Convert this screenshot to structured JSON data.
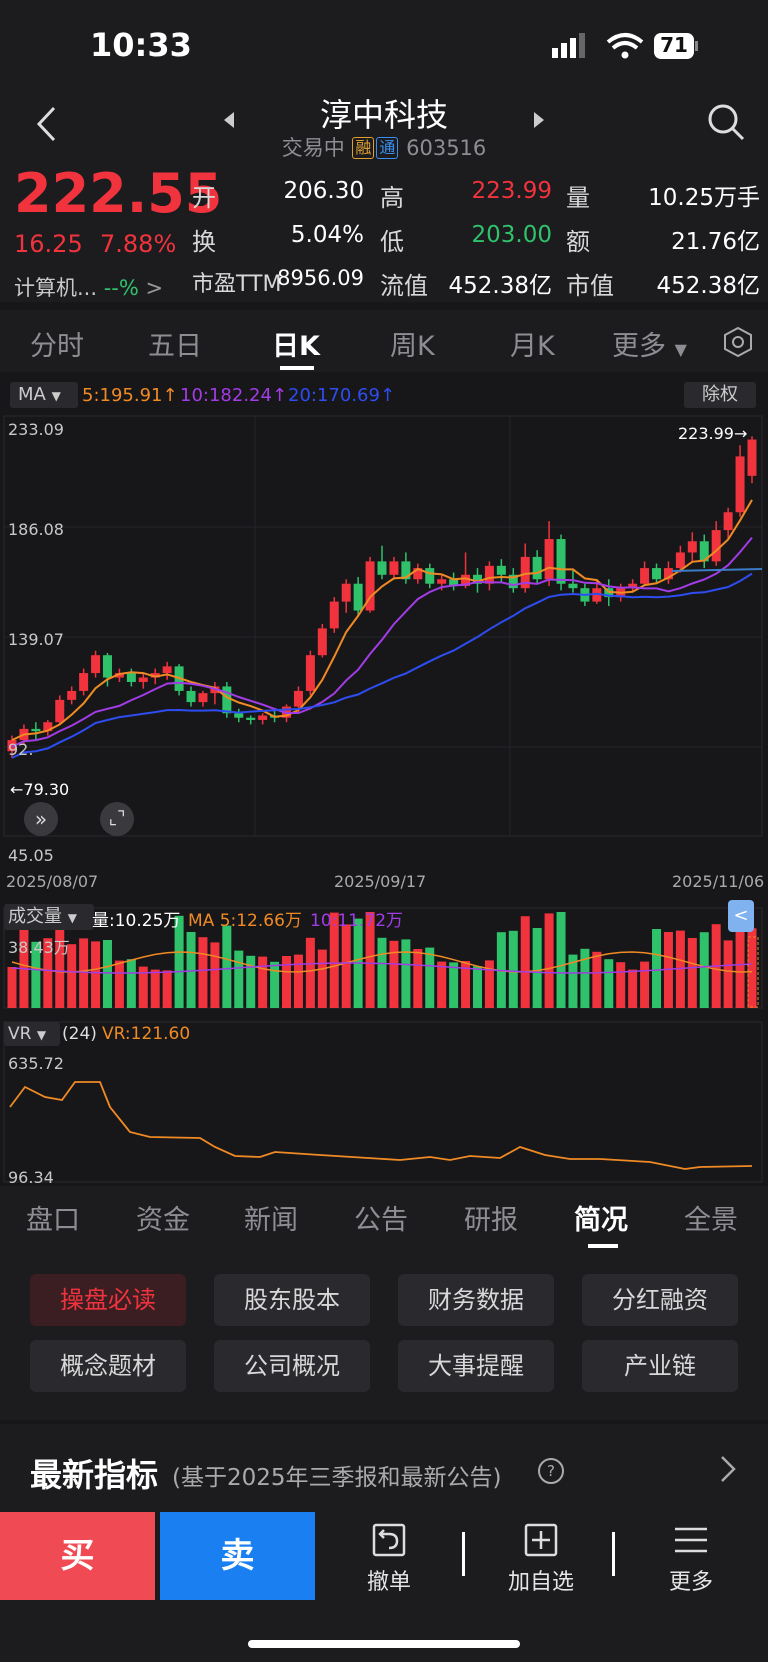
{
  "status": {
    "time": "10:33",
    "battery": "71"
  },
  "header": {
    "title": "淳中科技",
    "status_text": "交易中",
    "badge1": "融",
    "badge2": "通",
    "code": "603516"
  },
  "quote": {
    "price": "222.55",
    "change": "16.25",
    "change_pct": "7.88%",
    "sector": "计算机...",
    "sector_change": "--%",
    "open_label": "开",
    "open": "206.30",
    "high_label": "高",
    "high": "223.99",
    "vol_label": "量",
    "vol": "10.25万手",
    "turnover_label": "换",
    "turnover": "5.04%",
    "low_label": "低",
    "low": "203.00",
    "amount_label": "额",
    "amount": "21.76亿",
    "pe_label": "市盈TTM",
    "pe": "8956.09",
    "float_label": "流值",
    "float_cap": "452.38亿",
    "mcap_label": "市值",
    "mcap": "452.38亿"
  },
  "ktabs": [
    "分时",
    "五日",
    "日K",
    "周K",
    "月K",
    "更多"
  ],
  "ma": {
    "label": "MA",
    "ma5": "5:195.91",
    "ma10": "10:182.24",
    "ma20": "20:170.69",
    "adjust": "除权"
  },
  "axis": {
    "top": "233.09",
    "y2": "186.08",
    "y3": "139.07",
    "y4": "92.",
    "bottom": "45.05",
    "d1": "2025/08/07",
    "d2": "2025/09/17",
    "d3": "2025/11/06",
    "high_mark": "223.99",
    "low_mark": "79.30"
  },
  "volume": {
    "label": "成交量",
    "now": "量:10.25万",
    "ma5": "MA 5:12.66万",
    "ma10": "10:11.72万",
    "max": "38.43万"
  },
  "vr": {
    "label": "VR",
    "period": "(24)",
    "value": "VR:121.60",
    "max": "635.72",
    "min": "96.34"
  },
  "btabs": [
    "盘口",
    "资金",
    "新闻",
    "公告",
    "研报",
    "简况",
    "全景"
  ],
  "grid": [
    "操盘必读",
    "股东股本",
    "财务数据",
    "分红融资",
    "概念题材",
    "公司概况",
    "大事提醒",
    "产业链"
  ],
  "latest": {
    "title": "最新指标",
    "sub": "(基于2025年三季报和最新公告)"
  },
  "actions": {
    "buy": "买",
    "sell": "卖",
    "cancel": "撤单",
    "add": "加自选",
    "more": "更多"
  },
  "colors": {
    "up": "#f0333d",
    "down": "#2fc26b",
    "ma5": "#f08a24",
    "ma10": "#a23ce6",
    "ma20": "#2e4df0"
  },
  "chart_data": {
    "type": "candlestick",
    "x_start": "2025/08/07",
    "x_mid": "2025/09/17",
    "x_end": "2025/11/06",
    "ylim": [
      45.05,
      233.09
    ],
    "candles": [
      [
        83,
        88,
        80,
        90
      ],
      [
        88,
        93,
        86,
        95
      ],
      [
        93,
        92,
        88,
        96
      ],
      [
        92,
        96,
        90,
        97
      ],
      [
        96,
        106,
        95,
        108
      ],
      [
        106,
        110,
        104,
        112
      ],
      [
        110,
        118,
        108,
        120
      ],
      [
        118,
        126,
        116,
        128
      ],
      [
        126,
        116,
        112,
        127
      ],
      [
        116,
        118,
        114,
        120
      ],
      [
        118,
        114,
        112,
        120
      ],
      [
        114,
        116,
        111,
        118
      ],
      [
        116,
        118,
        113,
        120
      ],
      [
        118,
        121,
        115,
        123
      ],
      [
        121,
        110,
        108,
        122
      ],
      [
        110,
        105,
        103,
        112
      ],
      [
        105,
        109,
        103,
        110
      ],
      [
        109,
        112,
        104,
        114
      ],
      [
        112,
        100,
        98,
        114
      ],
      [
        100,
        98,
        96,
        102
      ],
      [
        98,
        97,
        95,
        99
      ],
      [
        97,
        99,
        95,
        100
      ],
      [
        99,
        98,
        96,
        101
      ],
      [
        98,
        103,
        96,
        104
      ],
      [
        103,
        110,
        100,
        112
      ],
      [
        110,
        126,
        108,
        128
      ],
      [
        126,
        138,
        125,
        140
      ],
      [
        138,
        150,
        136,
        152
      ],
      [
        150,
        158,
        145,
        160
      ],
      [
        158,
        146,
        144,
        161
      ],
      [
        146,
        168,
        145,
        170
      ],
      [
        168,
        162,
        160,
        175
      ],
      [
        162,
        168,
        160,
        170
      ],
      [
        168,
        160,
        158,
        172
      ],
      [
        160,
        165,
        158,
        167
      ],
      [
        165,
        158,
        156,
        167
      ],
      [
        158,
        160,
        155,
        162
      ],
      [
        160,
        157,
        155,
        163
      ],
      [
        157,
        162,
        156,
        172
      ],
      [
        162,
        158,
        154,
        165
      ],
      [
        158,
        166,
        155,
        168
      ],
      [
        166,
        162,
        159,
        169
      ],
      [
        162,
        156,
        154,
        165
      ],
      [
        156,
        170,
        154,
        176
      ],
      [
        170,
        160,
        158,
        173
      ],
      [
        160,
        178,
        157,
        186
      ],
      [
        178,
        158,
        155,
        180
      ],
      [
        158,
        156,
        154,
        164
      ],
      [
        156,
        150,
        148,
        158
      ],
      [
        150,
        156,
        149,
        160
      ],
      [
        156,
        152,
        148,
        160
      ],
      [
        152,
        156,
        150,
        158
      ],
      [
        156,
        158,
        154,
        160
      ],
      [
        158,
        165,
        157,
        168
      ],
      [
        165,
        160,
        158,
        167
      ],
      [
        160,
        165,
        158,
        168
      ],
      [
        165,
        172,
        163,
        175
      ],
      [
        172,
        177,
        168,
        181
      ],
      [
        177,
        168,
        165,
        180
      ],
      [
        168,
        182,
        166,
        186
      ],
      [
        182,
        190,
        178,
        192
      ],
      [
        190,
        215,
        188,
        220
      ],
      [
        206.3,
        222.55,
        203,
        223.99
      ]
    ],
    "volume_max": "38.43万",
    "vr_range": [
      96.34,
      635.72
    ]
  }
}
